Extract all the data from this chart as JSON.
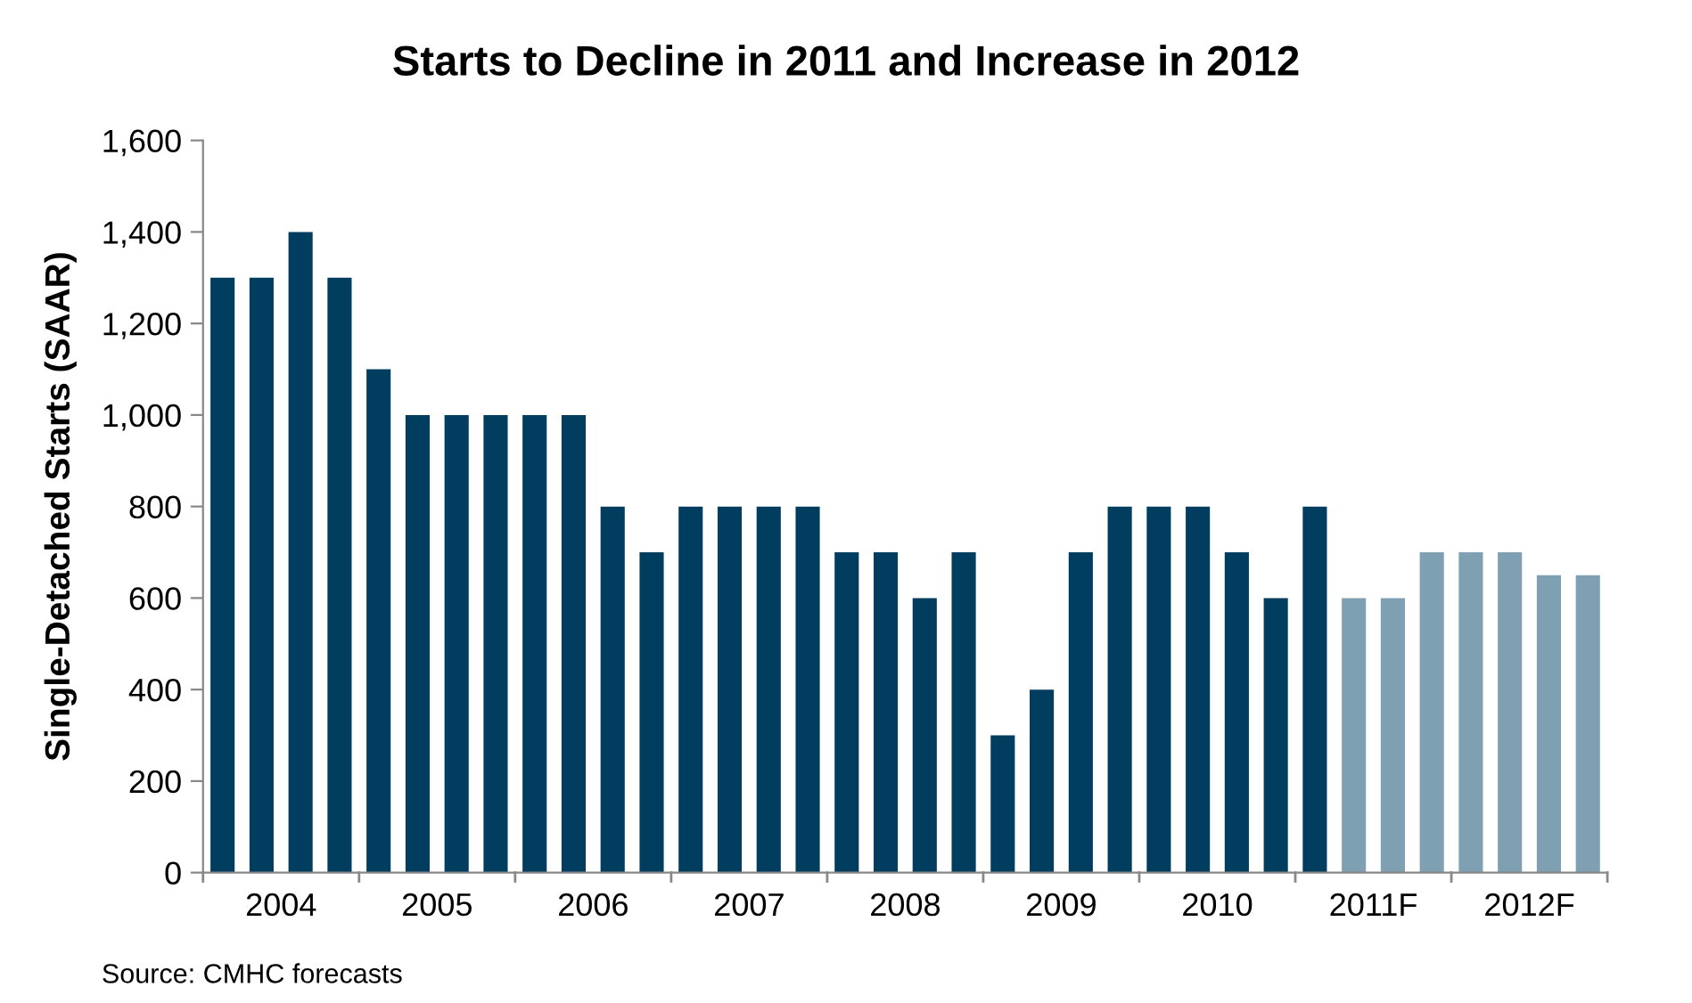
{
  "chart_data": {
    "type": "bar",
    "title": "Starts to Decline in 2011 and Increase in 2012",
    "ylabel": "Single-Detached Starts (SAAR)",
    "categories": [
      null,
      "2004",
      null,
      null,
      null,
      "2005",
      null,
      null,
      null,
      "2006",
      null,
      null,
      null,
      "2007",
      null,
      null,
      null,
      "2008",
      null,
      null,
      null,
      "2009",
      null,
      null,
      null,
      "2010",
      null,
      null,
      null,
      "2011F",
      null,
      null,
      null,
      "2012F",
      null,
      null
    ],
    "values": [
      1300,
      1300,
      1400,
      1300,
      1100,
      1000,
      1000,
      1000,
      1000,
      1000,
      800,
      700,
      800,
      800,
      800,
      800,
      700,
      700,
      600,
      700,
      300,
      400,
      700,
      800,
      800,
      800,
      700,
      600,
      800,
      600,
      600,
      700,
      700,
      700,
      650,
      650
    ],
    "colors": [
      "#003d5f",
      "#003d5f",
      "#003d5f",
      "#003d5f",
      "#003d5f",
      "#003d5f",
      "#003d5f",
      "#003d5f",
      "#003d5f",
      "#003d5f",
      "#003d5f",
      "#003d5f",
      "#003d5f",
      "#003d5f",
      "#003d5f",
      "#003d5f",
      "#003d5f",
      "#003d5f",
      "#003d5f",
      "#003d5f",
      "#003d5f",
      "#003d5f",
      "#003d5f",
      "#003d5f",
      "#003d5f",
      "#003d5f",
      "#003d5f",
      "#003d5f",
      "#003d5f",
      "#7f9fb3",
      "#7f9fb3",
      "#7f9fb3",
      "#7f9fb3",
      "#7f9fb3",
      "#7f9fb3",
      "#7f9fb3"
    ],
    "ylim": [
      0,
      1600
    ],
    "yticks": [
      0,
      {
        "value": 200,
        "label": "200"
      },
      {
        "value": 400,
        "label": "400"
      },
      {
        "value": 600,
        "label": "600"
      },
      {
        "value": 800,
        "label": "800"
      },
      {
        "value": 1000,
        "label": "1,000"
      },
      {
        "value": 1200,
        "label": "1,200"
      },
      {
        "value": 1400,
        "label": "1,400"
      },
      {
        "value": 1600,
        "label": "1,600"
      }
    ],
    "grid": false,
    "legend": false,
    "annotations": [
      "Source: CMHC forecasts"
    ]
  }
}
